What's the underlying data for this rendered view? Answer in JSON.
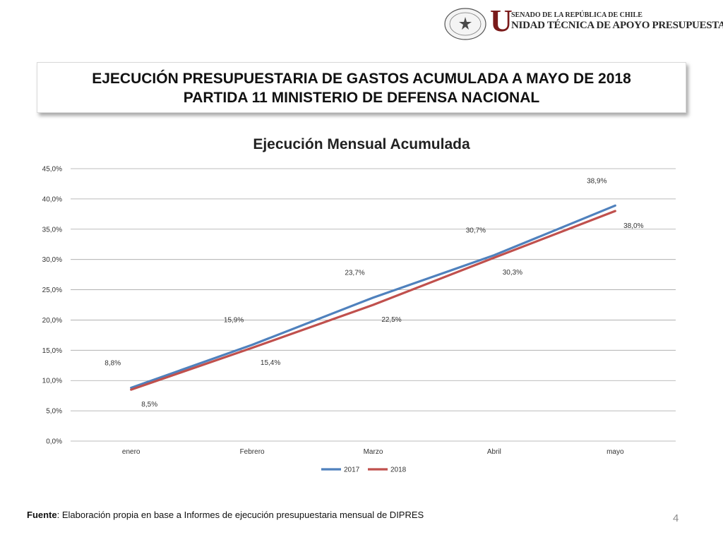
{
  "logo": {
    "seal_text": "REPÚBLICA DE CHILE",
    "seal_bottom": "SENADO",
    "letter": "U",
    "line1": "SENADO DE LA REPÚBLICA DE CHILE",
    "line2": "NIDAD TÉCNICA DE APOYO PRESUPUESTARIO"
  },
  "slide": {
    "title_line1": "EJECUCIÓN PRESUPUESTARIA DE GASTOS ACUMULADA A MAYO DE 2018",
    "title_line2": "PARTIDA 11 MINISTERIO DE DEFENSA NACIONAL",
    "footer_label": "Fuente",
    "footer_text": ": Elaboración propia en base  a Informes de ejecución presupuestaria mensual de DIPRES",
    "page_number": "4"
  },
  "chart_data": {
    "type": "line",
    "title": "Ejecución Mensual Acumulada",
    "categories": [
      "enero",
      "Febrero",
      "Marzo",
      "Abril",
      "mayo"
    ],
    "ylim": [
      0,
      45
    ],
    "yticks": [
      "0,0%",
      "5,0%",
      "10,0%",
      "15,0%",
      "20,0%",
      "25,0%",
      "30,0%",
      "35,0%",
      "40,0%",
      "45,0%"
    ],
    "grid": true,
    "legend_position": "bottom",
    "series": [
      {
        "name": "2017",
        "color": "#4f81bd",
        "values": [
          8.8,
          15.9,
          23.7,
          30.7,
          38.9
        ],
        "labels": [
          "8,8%",
          "15,9%",
          "23,7%",
          "30,7%",
          "38,9%"
        ]
      },
      {
        "name": "2018",
        "color": "#c0504d",
        "values": [
          8.5,
          15.4,
          22.5,
          30.3,
          38.0
        ],
        "labels": [
          "8,5%",
          "15,4%",
          "22,5%",
          "30,3%",
          "38,0%"
        ]
      }
    ]
  }
}
